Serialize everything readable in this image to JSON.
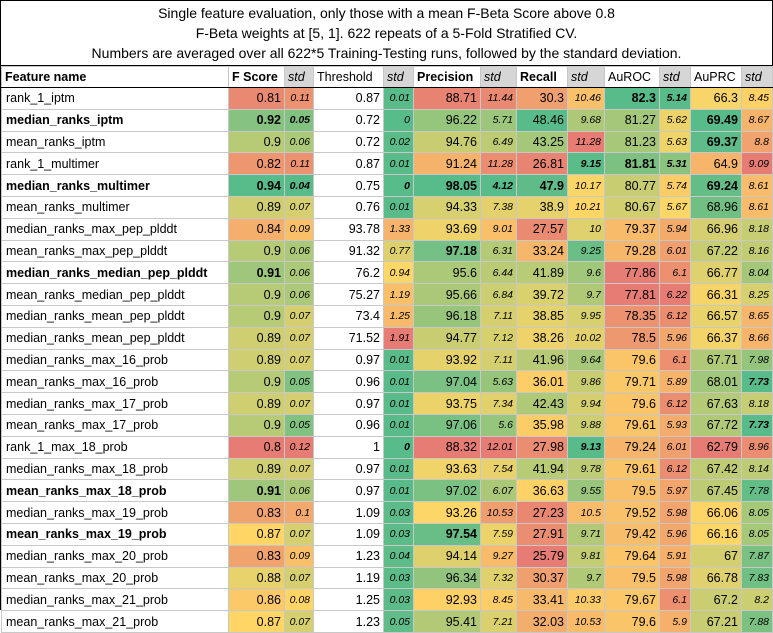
{
  "header": {
    "line1": "Single feature evaluation, only those with a mean F-Beta Score above 0.8",
    "line2": "F-Beta weights at [5, 1]. 622 repeats of a 5-Fold Stratified CV.",
    "line3": "Numbers are averaged over all 622*5 Training-Testing runs, followed by the standard deviation."
  },
  "columns": {
    "feature": "Feature name",
    "fscore": "F Score",
    "threshold": "Threshold",
    "precision": "Precision",
    "recall": "Recall",
    "auroc": "AuROC",
    "auprc": "AuPRC",
    "std": "std"
  },
  "rows": [
    {
      "name": "rank_1_iptm",
      "f": "0.81",
      "fs": "0.11",
      "t": "0.87",
      "ts": "0.01",
      "p": "88.71",
      "ps": "11.44",
      "r": "30.3",
      "rs": "10.46",
      "a": "82.3",
      "as": "5.14",
      "c": "66.3",
      "cs": "8.45",
      "bold": false,
      "ab": true,
      "asb": true
    },
    {
      "name": "median_ranks_iptm",
      "f": "0.92",
      "fs": "0.05",
      "t": "0.72",
      "ts": "0",
      "p": "96.22",
      "ps": "5.71",
      "r": "48.46",
      "rs": "9.68",
      "a": "81.27",
      "as": "5.62",
      "c": "69.49",
      "cs": "8.67",
      "bold": true,
      "fb": true,
      "fsb": true,
      "cb": true
    },
    {
      "name": "mean_ranks_iptm",
      "f": "0.9",
      "fs": "0.06",
      "t": "0.72",
      "ts": "0.02",
      "p": "94.76",
      "ps": "6.49",
      "r": "43.25",
      "rs": "11.28",
      "a": "81.23",
      "as": "5.63",
      "c": "69.37",
      "cs": "8.8",
      "bold": false,
      "cb": true
    },
    {
      "name": "rank_1_multimer",
      "f": "0.82",
      "fs": "0.11",
      "t": "0.87",
      "ts": "0.01",
      "p": "91.24",
      "ps": "11.28",
      "r": "26.81",
      "rs": "9.15",
      "a": "81.81",
      "as": "5.31",
      "c": "64.9",
      "cs": "9.09",
      "bold": false,
      "rsb": true,
      "ab": true,
      "asb": true
    },
    {
      "name": "median_ranks_multimer",
      "f": "0.94",
      "fs": "0.04",
      "t": "0.75",
      "ts": "0",
      "p": "98.05",
      "ps": "4.12",
      "r": "47.9",
      "rs": "10.17",
      "a": "80.77",
      "as": "5.74",
      "c": "69.24",
      "cs": "8.61",
      "bold": true,
      "fb": true,
      "fsb": true,
      "tsb": true,
      "pb": true,
      "psb": true,
      "rb": true,
      "cb": true
    },
    {
      "name": "mean_ranks_multimer",
      "f": "0.89",
      "fs": "0.07",
      "t": "0.76",
      "ts": "0.01",
      "p": "94.33",
      "ps": "7.38",
      "r": "38.9",
      "rs": "10.21",
      "a": "80.67",
      "as": "5.67",
      "c": "68.96",
      "cs": "8.61",
      "bold": false
    },
    {
      "name": "median_ranks_max_pep_plddt",
      "f": "0.84",
      "fs": "0.09",
      "t": "93.78",
      "ts": "1.33",
      "p": "93.69",
      "ps": "9.01",
      "r": "27.57",
      "rs": "10",
      "a": "79.37",
      "as": "5.94",
      "c": "66.96",
      "cs": "8.18",
      "bold": false
    },
    {
      "name": "mean_ranks_max_pep_plddt",
      "f": "0.9",
      "fs": "0.06",
      "t": "91.32",
      "ts": "0.77",
      "p": "97.18",
      "ps": "6.31",
      "r": "33.24",
      "rs": "9.25",
      "a": "79.28",
      "as": "6.01",
      "c": "67.22",
      "cs": "8.16",
      "bold": false,
      "pb": true
    },
    {
      "name": "median_ranks_median_pep_plddt",
      "f": "0.91",
      "fs": "0.06",
      "t": "76.2",
      "ts": "0.94",
      "p": "95.6",
      "ps": "6.44",
      "r": "41.89",
      "rs": "9.6",
      "a": "77.86",
      "as": "6.1",
      "c": "66.77",
      "cs": "8.04",
      "bold": true,
      "fb": true
    },
    {
      "name": "mean_ranks_median_pep_plddt",
      "f": "0.9",
      "fs": "0.06",
      "t": "75.27",
      "ts": "1.19",
      "p": "95.66",
      "ps": "6.84",
      "r": "39.72",
      "rs": "9.7",
      "a": "77.81",
      "as": "6.22",
      "c": "66.31",
      "cs": "8.25",
      "bold": false
    },
    {
      "name": "median_ranks_mean_pep_plddt",
      "f": "0.9",
      "fs": "0.07",
      "t": "73.4",
      "ts": "1.25",
      "p": "96.18",
      "ps": "7.11",
      "r": "38.85",
      "rs": "9.95",
      "a": "78.35",
      "as": "6.12",
      "c": "66.57",
      "cs": "8.65",
      "bold": false
    },
    {
      "name": "median_ranks_mean_pep_plddt",
      "f": "0.89",
      "fs": "0.07",
      "t": "71.52",
      "ts": "1.91",
      "p": "94.77",
      "ps": "7.12",
      "r": "38.26",
      "rs": "10.02",
      "a": "78.5",
      "as": "5.96",
      "c": "66.37",
      "cs": "8.66",
      "bold": false
    },
    {
      "name": "median_ranks_max_16_prob",
      "f": "0.89",
      "fs": "0.07",
      "t": "0.97",
      "ts": "0.01",
      "p": "93.92",
      "ps": "7.11",
      "r": "41.96",
      "rs": "9.64",
      "a": "79.6",
      "as": "6.1",
      "c": "67.71",
      "cs": "7.98",
      "bold": false
    },
    {
      "name": "mean_ranks_max_16_prob",
      "f": "0.9",
      "fs": "0.05",
      "t": "0.96",
      "ts": "0.01",
      "p": "97.04",
      "ps": "5.63",
      "r": "36.01",
      "rs": "9.86",
      "a": "79.71",
      "as": "5.89",
      "c": "68.01",
      "cs": "7.73",
      "bold": false,
      "csb": true
    },
    {
      "name": "median_ranks_max_17_prob",
      "f": "0.89",
      "fs": "0.07",
      "t": "0.97",
      "ts": "0.01",
      "p": "93.75",
      "ps": "7.34",
      "r": "42.43",
      "rs": "9.94",
      "a": "79.6",
      "as": "6.12",
      "c": "67.63",
      "cs": "8.18",
      "bold": false
    },
    {
      "name": "mean_ranks_max_17_prob",
      "f": "0.9",
      "fs": "0.05",
      "t": "0.96",
      "ts": "0.01",
      "p": "97.06",
      "ps": "5.6",
      "r": "35.98",
      "rs": "9.88",
      "a": "79.61",
      "as": "5.93",
      "c": "67.72",
      "cs": "7.73",
      "bold": false,
      "csb": true
    },
    {
      "name": "rank_1_max_18_prob",
      "f": "0.8",
      "fs": "0.12",
      "t": "1",
      "ts": "0",
      "p": "88.32",
      "ps": "12.01",
      "r": "27.98",
      "rs": "9.13",
      "a": "79.24",
      "as": "6.01",
      "c": "62.79",
      "cs": "8.96",
      "bold": false,
      "tsb": true,
      "rsb": true
    },
    {
      "name": "median_ranks_max_18_prob",
      "f": "0.89",
      "fs": "0.07",
      "t": "0.97",
      "ts": "0.01",
      "p": "93.63",
      "ps": "7.54",
      "r": "41.94",
      "rs": "9.78",
      "a": "79.61",
      "as": "6.12",
      "c": "67.42",
      "cs": "8.14",
      "bold": false
    },
    {
      "name": "mean_ranks_max_18_prob",
      "f": "0.91",
      "fs": "0.06",
      "t": "0.97",
      "ts": "0.01",
      "p": "97.02",
      "ps": "6.07",
      "r": "36.63",
      "rs": "9.55",
      "a": "79.5",
      "as": "5.97",
      "c": "67.45",
      "cs": "7.78",
      "bold": true,
      "fb": true
    },
    {
      "name": "median_ranks_max_19_prob",
      "f": "0.83",
      "fs": "0.1",
      "t": "1.09",
      "ts": "0.03",
      "p": "93.26",
      "ps": "10.53",
      "r": "27.23",
      "rs": "10.5",
      "a": "79.52",
      "as": "5.98",
      "c": "66.06",
      "cs": "8.05",
      "bold": false
    },
    {
      "name": "mean_ranks_max_19_prob",
      "f": "0.87",
      "fs": "0.07",
      "t": "1.09",
      "ts": "0.03",
      "p": "97.54",
      "ps": "7.59",
      "r": "27.91",
      "rs": "9.71",
      "a": "79.42",
      "as": "5.96",
      "c": "66.16",
      "cs": "8.05",
      "bold": true,
      "pb": true
    },
    {
      "name": "median_ranks_max_20_prob",
      "f": "0.83",
      "fs": "0.09",
      "t": "1.23",
      "ts": "0.04",
      "p": "94.14",
      "ps": "9.27",
      "r": "25.79",
      "rs": "9.81",
      "a": "79.64",
      "as": "5.91",
      "c": "67",
      "cs": "7.87",
      "bold": false
    },
    {
      "name": "mean_ranks_max_20_prob",
      "f": "0.88",
      "fs": "0.07",
      "t": "1.19",
      "ts": "0.03",
      "p": "96.34",
      "ps": "7.32",
      "r": "30.37",
      "rs": "9.7",
      "a": "79.5",
      "as": "5.98",
      "c": "66.78",
      "cs": "7.83",
      "bold": false
    },
    {
      "name": "median_ranks_max_21_prob",
      "f": "0.86",
      "fs": "0.08",
      "t": "1.25",
      "ts": "0.03",
      "p": "92.93",
      "ps": "8.45",
      "r": "33.41",
      "rs": "10.33",
      "a": "79.67",
      "as": "6.1",
      "c": "67.2",
      "cs": "8.2",
      "bold": false
    },
    {
      "name": "mean_ranks_max_21_prob",
      "f": "0.87",
      "fs": "0.07",
      "t": "1.23",
      "ts": "0.05",
      "p": "95.41",
      "ps": "7.21",
      "r": "32.03",
      "rs": "10.53",
      "a": "79.6",
      "as": "5.9",
      "c": "67.21",
      "cs": "7.88",
      "bold": false
    }
  ]
}
